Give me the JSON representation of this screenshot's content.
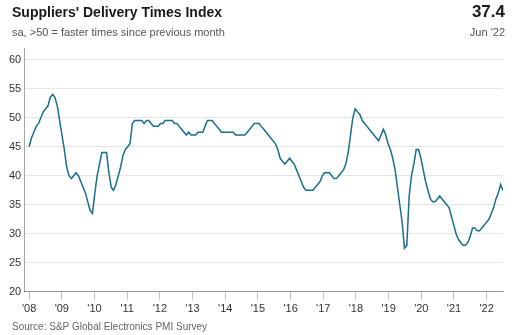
{
  "chart_data": {
    "type": "line",
    "title": "Suppliers' Delivery Times Index",
    "subtitle": "sa, >50 = faster times since previous month",
    "annotations": [
      "37.4",
      "Jun '22",
      "Source: S&P Global Electronics PMI Survey"
    ],
    "color": "#1a6e8e",
    "grid": "y",
    "xlim": [
      2007.85,
      2022.5
    ],
    "xticks": [
      {
        "value": 2008,
        "label": "'08"
      },
      {
        "value": 2009,
        "label": "'09"
      },
      {
        "value": 2010,
        "label": "'10"
      },
      {
        "value": 2011,
        "label": "'11"
      },
      {
        "value": 2012,
        "label": "'12"
      },
      {
        "value": 2013,
        "label": "'13"
      },
      {
        "value": 2014,
        "label": "'14"
      },
      {
        "value": 2015,
        "label": "'15"
      },
      {
        "value": 2016,
        "label": "'16"
      },
      {
        "value": 2017,
        "label": "'17"
      },
      {
        "value": 2018,
        "label": "'18"
      },
      {
        "value": 2019,
        "label": "'19"
      },
      {
        "value": 2020,
        "label": "'20"
      },
      {
        "value": 2021,
        "label": "'21"
      },
      {
        "value": 2022,
        "label": "'22"
      }
    ],
    "ylim": [
      20,
      62
    ],
    "yticks": [
      20,
      25,
      30,
      35,
      40,
      45,
      50,
      55,
      60
    ],
    "x": [
      2008,
      2008.0718,
      2008.1436,
      2008.2153,
      2008.2871,
      2008.3589,
      2008.4307,
      2008.5025,
      2008.5743,
      2008.646,
      2008.7178,
      2008.7896,
      2008.8614,
      2008.9332,
      2009.005,
      2009.0767,
      2009.1485,
      2009.2203,
      2009.2921,
      2009.3639,
      2009.4356,
      2009.5074,
      2009.5792,
      2009.651,
      2009.7228,
      2009.7946,
      2009.8663,
      2009.9381,
      2010.0099,
      2010.0817,
      2010.1535,
      2010.2252,
      2010.297,
      2010.3688,
      2010.4406,
      2010.5124,
      2010.5842,
      2010.6559,
      2010.7277,
      2010.7995,
      2010.8713,
      2010.9431,
      2011.0149,
      2011.0866,
      2011.1584,
      2011.2302,
      2011.302,
      2011.3738,
      2011.4455,
      2011.5173,
      2011.5891,
      2011.6609,
      2011.7327,
      2011.8045,
      2011.8762,
      2011.948,
      2012.0198,
      2012.0916,
      2012.1634,
      2012.2351,
      2012.3069,
      2012.3787,
      2012.4505,
      2012.5223,
      2012.5941,
      2012.6658,
      2012.7376,
      2012.8094,
      2012.8812,
      2012.953,
      2013.0248,
      2013.0965,
      2013.1683,
      2013.2401,
      2013.3119,
      2013.3837,
      2013.4554,
      2013.5272,
      2013.599,
      2013.6708,
      2013.7426,
      2013.8144,
      2013.8861,
      2013.9579,
      2014.0297,
      2014.1015,
      2014.1733,
      2014.245,
      2014.3168,
      2014.3886,
      2014.4604,
      2014.5322,
      2014.604,
      2014.6757,
      2014.7475,
      2014.8193,
      2014.8911,
      2014.9629,
      2015.0347,
      2015.1064,
      2015.1782,
      2015.25,
      2015.3218,
      2015.3936,
      2015.4653,
      2015.5371,
      2015.6089,
      2015.6807,
      2015.7525,
      2015.8243,
      2015.896,
      2015.9678,
      2016.0396,
      2016.1114,
      2016.1832,
      2016.255,
      2016.3267,
      2016.3985,
      2016.4703,
      2016.5421,
      2016.6139,
      2016.6856,
      2016.7574,
      2016.8292,
      2016.901,
      2016.9728,
      2017.0446,
      2017.1163,
      2017.1881,
      2017.2599,
      2017.3317,
      2017.4035,
      2017.4752,
      2017.547,
      2017.6188,
      2017.6906,
      2017.7624,
      2017.8342,
      2017.9059,
      2017.9777,
      2018.0495,
      2018.1213,
      2018.1931,
      2018.2649,
      2018.3366,
      2018.4084,
      2018.4802,
      2018.552,
      2018.6238,
      2018.6955,
      2018.7673,
      2018.8391,
      2018.9109,
      2018.9827,
      2019.0545,
      2019.1262,
      2019.198,
      2019.2698,
      2019.3416,
      2019.4134,
      2019.4851,
      2019.5569,
      2019.6287,
      2019.7005,
      2019.7723,
      2019.8441,
      2019.9158,
      2019.9876,
      2020.0594,
      2020.1312,
      2020.203,
      2020.2747,
      2020.3465,
      2020.4183,
      2020.4901,
      2020.5619,
      2020.6337,
      2020.7054,
      2020.7772,
      2020.849,
      2020.9208,
      2020.9926,
      2021.0644,
      2021.1361,
      2021.2079,
      2021.2797,
      2021.3515,
      2021.4233,
      2021.495,
      2021.5668,
      2021.6386,
      2021.7104,
      2021.7822,
      2021.854,
      2021.9257,
      2021.9975,
      2022.0693,
      2022.1411,
      2022.2129,
      2022.2847,
      2022.3564,
      2022.4282,
      2022.5
    ],
    "values": [
      45.0,
      46.5,
      47.5,
      48.5,
      49.0,
      50.0,
      51.0,
      51.5,
      52.0,
      53.5,
      54.0,
      53.5,
      52.0,
      49.5,
      47.0,
      44.5,
      41.5,
      40.0,
      39.5,
      40.0,
      40.5,
      40.0,
      39.0,
      38.0,
      37.0,
      35.5,
      34.0,
      33.5,
      37.0,
      40.0,
      42.0,
      44.0,
      44.0,
      44.0,
      40.5,
      38.0,
      37.5,
      38.5,
      40.0,
      41.5,
      43.5,
      44.5,
      45.0,
      45.5,
      49.0,
      49.5,
      49.5,
      49.5,
      49.5,
      49.0,
      49.5,
      49.5,
      49.0,
      48.5,
      48.5,
      48.5,
      49.0,
      49.0,
      49.5,
      49.5,
      49.5,
      49.5,
      49.0,
      49.0,
      48.5,
      48.0,
      47.5,
      47.0,
      47.5,
      47.0,
      47.0,
      47.0,
      47.5,
      47.5,
      47.5,
      48.5,
      49.5,
      49.5,
      49.5,
      49.0,
      48.5,
      48.0,
      47.5,
      47.5,
      47.5,
      47.5,
      47.5,
      47.5,
      47.0,
      47.0,
      47.0,
      47.0,
      47.0,
      47.5,
      48.0,
      48.5,
      49.0,
      49.0,
      49.0,
      48.5,
      48.0,
      47.5,
      47.0,
      46.5,
      46.0,
      45.5,
      44.5,
      43.0,
      42.5,
      42.0,
      42.5,
      43.0,
      42.5,
      42.0,
      41.0,
      40.0,
      39.0,
      38.0,
      37.5,
      37.5,
      37.5,
      37.5,
      38.0,
      38.5,
      39.0,
      40.0,
      40.5,
      40.5,
      40.5,
      40.0,
      39.5,
      39.5,
      40.0,
      40.5,
      41.0,
      42.0,
      44.0,
      47.0,
      50.0,
      51.5,
      51.0,
      50.5,
      49.5,
      49.0,
      48.5,
      48.0,
      47.5,
      47.0,
      46.5,
      46.0,
      47.0,
      48.0,
      47.0,
      45.5,
      44.5,
      43.0,
      41.0,
      38.0,
      35.0,
      32.0,
      27.5,
      28.0,
      36.5,
      40.0,
      42.0,
      44.5,
      44.5,
      43.0,
      41.0,
      39.0,
      37.5,
      36.0,
      35.5,
      35.5,
      36.0,
      36.5,
      36.0,
      35.5,
      35.0,
      34.5,
      33.0,
      31.5,
      30.0,
      29.0,
      28.5,
      28.0,
      28.0,
      28.5,
      29.5,
      31.0,
      31.0,
      30.5,
      30.5,
      31.0,
      31.5,
      32.0,
      32.5,
      33.5,
      34.5,
      36.0,
      37.0,
      38.5,
      37.4
    ]
  }
}
